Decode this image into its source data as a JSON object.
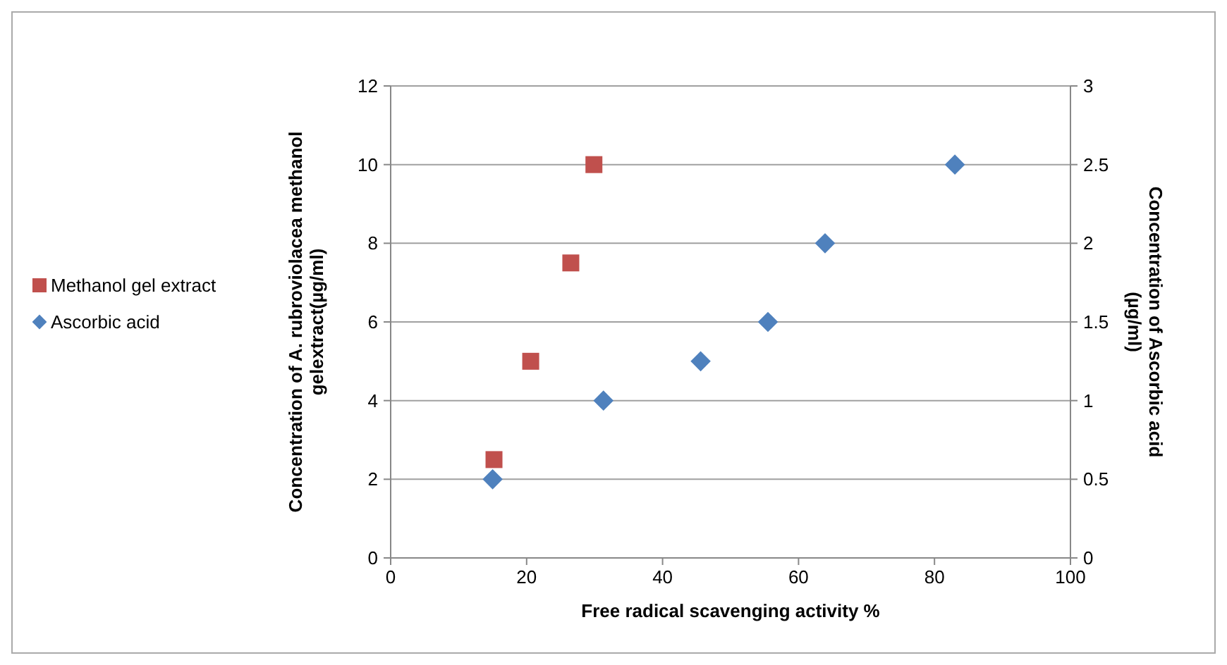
{
  "chart_data": {
    "type": "scatter",
    "xlabel": "Free radical scavenging activity %",
    "ylabel": "Concentration of A. rubroviolacea  methanol\ngelextract(µg/ml)",
    "y2label": "Concentration of Ascorbic acid\n(µg/ml)",
    "xlim": [
      0,
      100
    ],
    "xticks": [
      0,
      20,
      40,
      60,
      80,
      100
    ],
    "ylim": [
      0,
      12
    ],
    "yticks": [
      0,
      2,
      4,
      6,
      8,
      10,
      12
    ],
    "y2lim": [
      0,
      3
    ],
    "y2ticks": [
      0,
      0.5,
      1,
      1.5,
      2,
      2.5,
      3
    ],
    "grid": "y",
    "legend": "left",
    "series": [
      {
        "name": "Methanol gel  extract",
        "color": "#c0504d",
        "marker": "square",
        "x": [
          15.2,
          20.6,
          26.5,
          29.9
        ],
        "values": [
          2.5,
          5,
          7.5,
          10
        ]
      },
      {
        "name": "Ascorbic acid",
        "color": "#4f81bd",
        "marker": "diamond",
        "axis": "y2",
        "x": [
          15,
          31.3,
          45.6,
          55.5,
          63.9,
          83
        ],
        "values": [
          0.5,
          1,
          1.25,
          1.5,
          2,
          2.5
        ]
      }
    ]
  }
}
